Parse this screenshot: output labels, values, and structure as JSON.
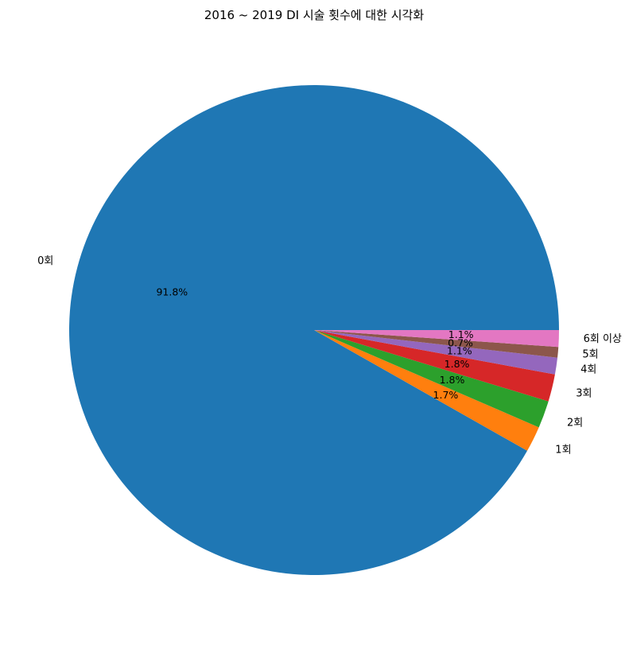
{
  "chart_data": {
    "type": "pie",
    "title": "2016 ~ 2019 DI 시술 횟수에 대한 시각화",
    "start_angle": 0,
    "direction": "counterclockwise",
    "slices": [
      {
        "label": "0회",
        "value": 91.8,
        "pct_label": "91.8%",
        "color": "#1f77b4"
      },
      {
        "label": "1회",
        "value": 1.7,
        "pct_label": "1.7%",
        "color": "#ff7f0e"
      },
      {
        "label": "2회",
        "value": 1.8,
        "pct_label": "1.8%",
        "color": "#2ca02c"
      },
      {
        "label": "3회",
        "value": 1.8,
        "pct_label": "1.8%",
        "color": "#d62728"
      },
      {
        "label": "4회",
        "value": 1.1,
        "pct_label": "1.1%",
        "color": "#9467bd"
      },
      {
        "label": "5회",
        "value": 0.7,
        "pct_label": "0.7%",
        "color": "#8c564b"
      },
      {
        "label": "6회 이상",
        "value": 1.1,
        "pct_label": "1.1%",
        "color": "#e377c2"
      }
    ]
  }
}
